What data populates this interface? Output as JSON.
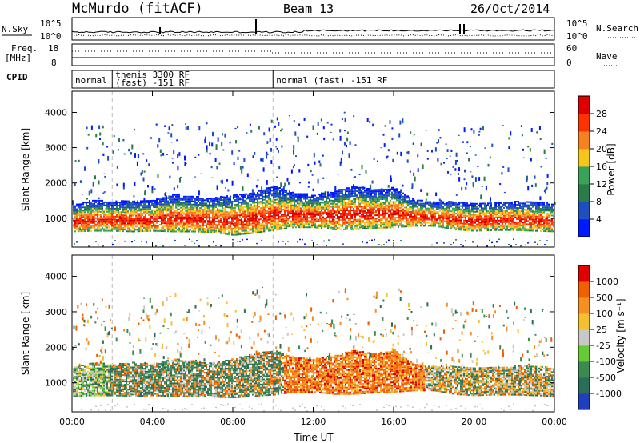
{
  "header": {
    "station": "McMurdo (fitACF)",
    "beam": "Beam 13",
    "date": "26/Oct/2014"
  },
  "sky_panel": {
    "left_label": "N.Sky",
    "right_label": "N.Search",
    "left_ticks": [
      "10^5",
      "10^0"
    ],
    "right_ticks": [
      "10^5",
      "10^0"
    ]
  },
  "freq_panel": {
    "left_label_line1": "Freq.",
    "left_label_line2": "[MHz]",
    "right_label": "Nave",
    "left_ticks": [
      "18",
      "8"
    ],
    "right_ticks": [
      "60",
      "0"
    ]
  },
  "cpid": {
    "label": "CPID",
    "segments": [
      {
        "start_hour": 0.0,
        "end_hour": 2.0,
        "line1": "normal",
        "line2": ""
      },
      {
        "start_hour": 2.0,
        "end_hour": 10.0,
        "line1": "themis 3300 RF",
        "line2": "(fast) -151 RF"
      },
      {
        "start_hour": 10.0,
        "end_hour": 24.0,
        "line1": "normal (fast) -151 RF",
        "line2": ""
      }
    ]
  },
  "chart_data": [
    {
      "type": "heatmap",
      "panel": "power",
      "ylabel": "Slant Range [km]",
      "ylim": [
        180,
        4600
      ],
      "yticks": [
        1000,
        2000,
        3000,
        4000
      ],
      "xlim": [
        0,
        24
      ],
      "xticks": [
        "00:00",
        "04:00",
        "08:00",
        "12:00",
        "16:00",
        "20:00",
        "00:00"
      ],
      "colorbar": {
        "label": "Power [dB]",
        "ticks": [
          "28",
          "24",
          "20",
          "16",
          "12",
          "8",
          "4"
        ],
        "colors": [
          "#0019ff",
          "#1f4fbf",
          "#2a7a4a",
          "#3aa35a",
          "#f6c61c",
          "#f58220",
          "#ff3300",
          "#e00000"
        ]
      },
      "echo_band": {
        "hours": [
          0,
          1,
          2,
          3,
          4,
          5,
          6,
          7,
          8,
          9,
          10,
          11,
          12,
          13,
          14,
          15,
          16,
          17,
          18,
          19,
          20,
          21,
          22,
          23,
          24
        ],
        "lower_km": [
          600,
          620,
          620,
          600,
          620,
          600,
          600,
          580,
          500,
          560,
          640,
          720,
          720,
          660,
          660,
          700,
          720,
          760,
          760,
          660,
          620,
          640,
          640,
          620,
          600
        ],
        "upper_km": [
          1350,
          1500,
          1450,
          1500,
          1500,
          1650,
          1600,
          1550,
          1650,
          1700,
          1900,
          1700,
          1650,
          1750,
          1900,
          1800,
          1850,
          1500,
          1450,
          1450,
          1400,
          1450,
          1450,
          1450,
          1400
        ]
      }
    },
    {
      "type": "heatmap",
      "panel": "velocity",
      "ylabel": "Slant Range [km]",
      "ylim": [
        180,
        4600
      ],
      "yticks": [
        1000,
        2000,
        3000,
        4000
      ],
      "xlim": [
        0,
        24
      ],
      "xticks": [
        "00:00",
        "04:00",
        "08:00",
        "12:00",
        "16:00",
        "20:00",
        "00:00"
      ],
      "xlabel": "Time UT",
      "colorbar": {
        "label": "Velocity [m s⁻¹]",
        "ticks": [
          "1000",
          "500",
          "100",
          "25",
          "-25",
          "-100",
          "-500",
          "-1000"
        ],
        "colors": [
          "#1f3fbf",
          "#2a6e5a",
          "#3d8a50",
          "#66cc33",
          "#c8c8c8",
          "#f5c030",
          "#f59020",
          "#f06000",
          "#e00000"
        ]
      },
      "echo_band": {
        "hours": [
          0,
          1,
          2,
          3,
          4,
          5,
          6,
          7,
          8,
          9,
          10,
          11,
          12,
          13,
          14,
          15,
          16,
          17,
          18,
          19,
          20,
          21,
          22,
          23,
          24
        ],
        "lower_km": [
          600,
          620,
          620,
          600,
          620,
          600,
          600,
          580,
          560,
          600,
          640,
          720,
          720,
          660,
          660,
          700,
          720,
          760,
          760,
          660,
          620,
          640,
          640,
          620,
          600
        ],
        "upper_km": [
          1400,
          1550,
          1500,
          1550,
          1500,
          1650,
          1600,
          1550,
          1650,
          1800,
          1900,
          1700,
          1650,
          1750,
          1900,
          1800,
          1900,
          1500,
          1450,
          1450,
          1400,
          1450,
          1450,
          1450,
          1400
        ]
      }
    }
  ]
}
